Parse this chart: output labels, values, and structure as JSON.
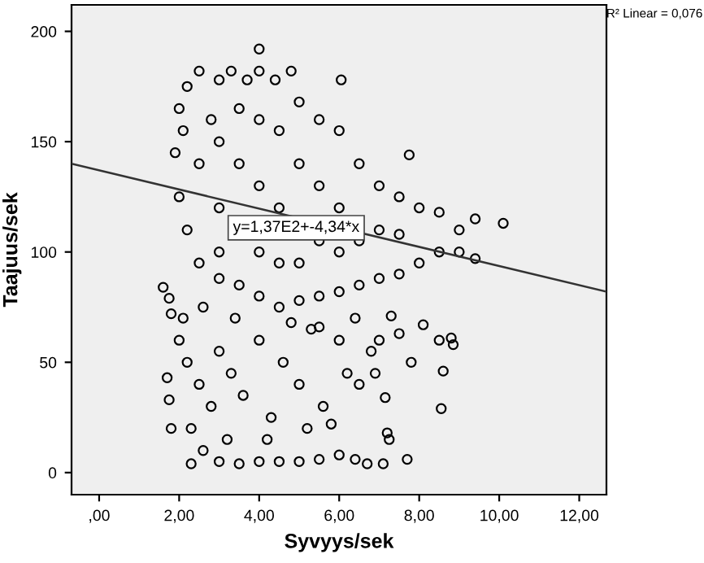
{
  "chart_data": {
    "type": "scatter",
    "xlabel": "Syvyys/sek",
    "ylabel": "Taajuus/sek",
    "xlim": [
      -0.69,
      12.68
    ],
    "ylim": [
      -10,
      212
    ],
    "xticks": [
      {
        "value": 0,
        "label": ",00"
      },
      {
        "value": 2,
        "label": "2,00"
      },
      {
        "value": 4,
        "label": "4,00"
      },
      {
        "value": 6,
        "label": "6,00"
      },
      {
        "value": 8,
        "label": "8,00"
      },
      {
        "value": 10,
        "label": "10,00"
      },
      {
        "value": 12,
        "label": "12,00"
      }
    ],
    "yticks": [
      0,
      50,
      100,
      150,
      200
    ],
    "grid": false,
    "annotations": [
      "R² Linear = 0,076",
      "y=1,37E2+-4,34*x"
    ],
    "series": [
      {
        "color": "#000000",
        "marker": "circle",
        "x": [
          4.0,
          6.05,
          7.75,
          10.1,
          9.4,
          9.4,
          8.55,
          7.7,
          7.1,
          6.7,
          7.2,
          7.25,
          7.15,
          8.6,
          8.85,
          8.8,
          8.1,
          7.3,
          6.4,
          1.6,
          1.75,
          1.8,
          1.7,
          1.75,
          1.8,
          2.0,
          2.5,
          3.3,
          4.0,
          4.8,
          2.2,
          3.0,
          3.7,
          4.4,
          5.0,
          5.5,
          6.0,
          6.5,
          7.0,
          7.5,
          8.0,
          8.5,
          9.0,
          9.0,
          8.5,
          8.0,
          7.5,
          7.0,
          6.5,
          6.0,
          5.5,
          5.0,
          4.5,
          4.0,
          3.5,
          3.0,
          2.5,
          2.2,
          2.0,
          1.9,
          2.1,
          3.0,
          3.5,
          4.0,
          4.5,
          5.5,
          6.0,
          6.5,
          7.0,
          7.5,
          3.0,
          4.0,
          4.5,
          5.0,
          3.0,
          2.5,
          3.5,
          4.5,
          5.5,
          6.0,
          2.8,
          4.0,
          5.0,
          2.0,
          2.2,
          2.5,
          2.8,
          3.0,
          3.3,
          3.6,
          4.0,
          4.3,
          4.6,
          5.0,
          5.3,
          5.6,
          6.0,
          6.2,
          6.5,
          6.8,
          2.3,
          2.6,
          3.0,
          3.5,
          4.0,
          4.5,
          5.0,
          5.5,
          6.0,
          6.4,
          2.3,
          3.2,
          4.2,
          5.2,
          5.8,
          2.1,
          2.6,
          3.4,
          4.8,
          5.5,
          7.0,
          7.5,
          7.8,
          6.9,
          8.5
        ],
        "values": [
          192,
          178,
          144,
          113,
          97,
          115,
          29,
          6,
          4,
          4,
          18,
          15,
          34,
          46,
          58,
          61,
          67,
          71,
          70,
          84,
          79,
          72,
          43,
          33,
          20,
          165,
          182,
          182,
          182,
          182,
          175,
          178,
          178,
          178,
          168,
          160,
          155,
          140,
          130,
          125,
          120,
          118,
          110,
          100,
          100,
          95,
          90,
          88,
          85,
          82,
          80,
          78,
          75,
          80,
          85,
          88,
          95,
          110,
          125,
          145,
          155,
          150,
          140,
          130,
          120,
          105,
          100,
          105,
          110,
          108,
          120,
          100,
          95,
          95,
          100,
          140,
          165,
          155,
          130,
          120,
          160,
          160,
          140,
          60,
          50,
          40,
          30,
          55,
          45,
          35,
          60,
          25,
          50,
          40,
          65,
          30,
          60,
          45,
          40,
          55,
          20,
          10,
          5,
          4,
          5,
          5,
          5,
          6,
          8,
          6,
          4,
          15,
          15,
          20,
          22,
          70,
          75,
          70,
          68,
          66,
          60,
          63,
          50,
          45,
          60
        ]
      },
      {
        "type": "line",
        "color": "#333333",
        "x": [
          -0.69,
          12.68
        ],
        "values": [
          140,
          82
        ]
      }
    ]
  }
}
